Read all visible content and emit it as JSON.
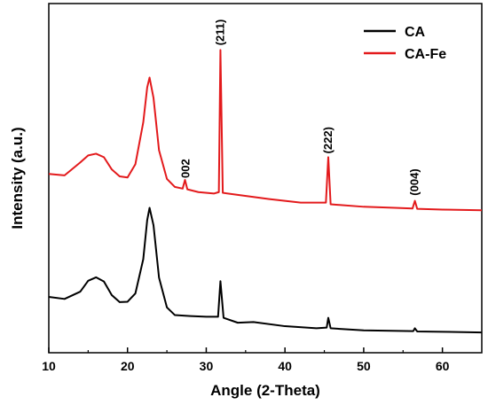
{
  "chart_data": {
    "type": "line",
    "title": "",
    "xlabel": "Angle (2-Theta)",
    "ylabel": "Intensity (a.u.)",
    "xlim": [
      10,
      65
    ],
    "ylim": [
      0,
      100
    ],
    "x_ticks": [
      10,
      20,
      30,
      40,
      50,
      60
    ],
    "y_ticks_shown": false,
    "grid": false,
    "legend": {
      "position": "top-right"
    },
    "series": [
      {
        "name": "CA",
        "color": "#000000",
        "points": [
          [
            10,
            16.0
          ],
          [
            12,
            15.4
          ],
          [
            14,
            17.5
          ],
          [
            15,
            20.6
          ],
          [
            16,
            21.6
          ],
          [
            17,
            20.4
          ],
          [
            18,
            16.5
          ],
          [
            19,
            14.5
          ],
          [
            20,
            14.6
          ],
          [
            21,
            17.0
          ],
          [
            22,
            26.8
          ],
          [
            22.5,
            38.0
          ],
          [
            22.8,
            41.5
          ],
          [
            23.3,
            36.5
          ],
          [
            24,
            21.5
          ],
          [
            25,
            13.0
          ],
          [
            26,
            10.8
          ],
          [
            28,
            10.5
          ],
          [
            30,
            10.3
          ],
          [
            31.5,
            10.3
          ],
          [
            31.8,
            20.5
          ],
          [
            32.2,
            10.0
          ],
          [
            34,
            8.6
          ],
          [
            36,
            8.8
          ],
          [
            40,
            7.6
          ],
          [
            44,
            7.0
          ],
          [
            45.3,
            7.2
          ],
          [
            45.5,
            10.0
          ],
          [
            45.8,
            7.0
          ],
          [
            50,
            6.4
          ],
          [
            56.3,
            6.2
          ],
          [
            56.5,
            7.0
          ],
          [
            56.8,
            6.1
          ],
          [
            60,
            6.0
          ],
          [
            65,
            5.8
          ]
        ]
      },
      {
        "name": "CA-Fe",
        "color": "#e31a1c",
        "points": [
          [
            10,
            51.2
          ],
          [
            12,
            50.8
          ],
          [
            14,
            54.5
          ],
          [
            15,
            56.5
          ],
          [
            16,
            57.0
          ],
          [
            17,
            56.0
          ],
          [
            18,
            52.5
          ],
          [
            19,
            50.5
          ],
          [
            20,
            50.2
          ],
          [
            21,
            54.0
          ],
          [
            22,
            66.0
          ],
          [
            22.5,
            76.0
          ],
          [
            22.8,
            78.8
          ],
          [
            23.3,
            73.0
          ],
          [
            24,
            58.0
          ],
          [
            25,
            49.8
          ],
          [
            26,
            47.5
          ],
          [
            27,
            47.0
          ],
          [
            27.3,
            49.5
          ],
          [
            27.6,
            46.8
          ],
          [
            29,
            46.0
          ],
          [
            31,
            45.6
          ],
          [
            31.6,
            46.0
          ],
          [
            31.8,
            86.7
          ],
          [
            32.1,
            45.8
          ],
          [
            34,
            45.2
          ],
          [
            38,
            44.0
          ],
          [
            42,
            43.0
          ],
          [
            45.2,
            43.0
          ],
          [
            45.5,
            56.0
          ],
          [
            45.8,
            42.5
          ],
          [
            50,
            41.8
          ],
          [
            54,
            41.5
          ],
          [
            56.2,
            41.3
          ],
          [
            56.5,
            43.5
          ],
          [
            56.8,
            41.2
          ],
          [
            60,
            41.0
          ],
          [
            65,
            40.8
          ]
        ]
      }
    ],
    "annotations": [
      {
        "text": "002",
        "x": 27.4,
        "y": 50,
        "rotation": -90
      },
      {
        "text": "(211)",
        "x": 31.8,
        "y": 88,
        "rotation": -90
      },
      {
        "text": "(222)",
        "x": 45.5,
        "y": 57,
        "rotation": -90
      },
      {
        "text": "(004)",
        "x": 56.5,
        "y": 45,
        "rotation": -90
      }
    ]
  }
}
